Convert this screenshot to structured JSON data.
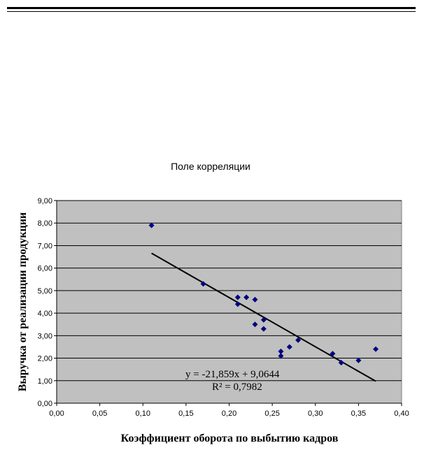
{
  "chart_data": {
    "type": "scatter",
    "title": "Поле корреляции",
    "xlabel": "Коэффициент оборота по выбытию кадров",
    "ylabel": "Выручка от реализации продукции",
    "xlim": [
      0,
      0.4
    ],
    "ylim": [
      0,
      9
    ],
    "x_ticks": [
      "0,00",
      "0,05",
      "0,10",
      "0,15",
      "0,20",
      "0,25",
      "0,30",
      "0,35",
      "0,40"
    ],
    "y_ticks": [
      "0,00",
      "1,00",
      "2,00",
      "3,00",
      "4,00",
      "5,00",
      "6,00",
      "7,00",
      "8,00",
      "9,00"
    ],
    "grid": "horizontal",
    "legend": "none",
    "plot_background": "#c0c0c0",
    "marker_color": "#000080",
    "marker": "diamond",
    "points": [
      {
        "x": 0.11,
        "y": 7.9
      },
      {
        "x": 0.17,
        "y": 5.3
      },
      {
        "x": 0.21,
        "y": 4.7
      },
      {
        "x": 0.21,
        "y": 4.4
      },
      {
        "x": 0.22,
        "y": 4.7
      },
      {
        "x": 0.23,
        "y": 4.6
      },
      {
        "x": 0.23,
        "y": 3.5
      },
      {
        "x": 0.24,
        "y": 3.7
      },
      {
        "x": 0.24,
        "y": 3.3
      },
      {
        "x": 0.26,
        "y": 2.3
      },
      {
        "x": 0.26,
        "y": 2.1
      },
      {
        "x": 0.27,
        "y": 2.5
      },
      {
        "x": 0.28,
        "y": 2.8
      },
      {
        "x": 0.32,
        "y": 2.2
      },
      {
        "x": 0.33,
        "y": 1.8
      },
      {
        "x": 0.35,
        "y": 1.9
      },
      {
        "x": 0.37,
        "y": 2.4
      }
    ],
    "trendline": {
      "slope": -21.859,
      "intercept": 9.0644,
      "x_range": [
        0.11,
        0.37
      ],
      "equation": "y = -21,859x + 9,0644",
      "r_squared": "R² = 0,7982"
    }
  }
}
